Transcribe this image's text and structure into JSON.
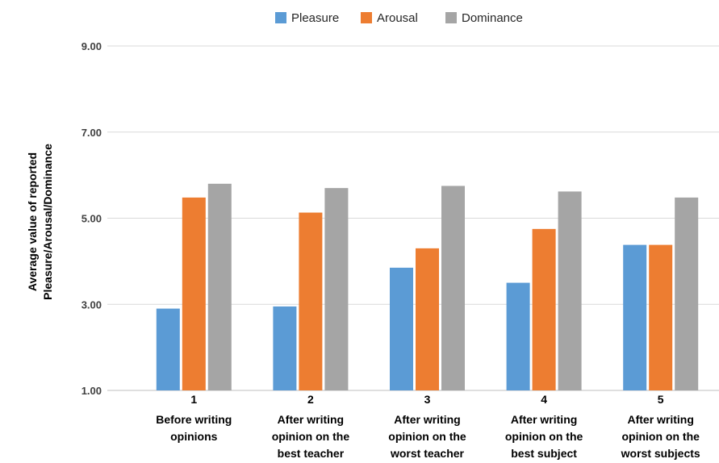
{
  "chart_data": {
    "type": "bar",
    "ylabel": [
      "Average value of reported",
      "Pleasure/Arousal/Dominance"
    ],
    "ylim": [
      1,
      9
    ],
    "yticks": [
      "1.00",
      "3.00",
      "5.00",
      "7.00",
      "9.00"
    ],
    "grid": true,
    "legend_position": "top",
    "categories": [
      {
        "num": "1",
        "lines": [
          "Before writing",
          "opinions"
        ]
      },
      {
        "num": "2",
        "lines": [
          "After writing",
          "opinion on the",
          "best teacher"
        ]
      },
      {
        "num": "3",
        "lines": [
          "After writing",
          "opinion on the",
          "worst teacher"
        ]
      },
      {
        "num": "4",
        "lines": [
          "After writing",
          "opinion on the",
          "best subject"
        ]
      },
      {
        "num": "5",
        "lines": [
          "After writing",
          "opinion on the",
          "worst subjects"
        ]
      }
    ],
    "series": [
      {
        "name": "Pleasure",
        "color": "#5b9bd5",
        "values": [
          2.9,
          2.95,
          3.85,
          3.5,
          4.38
        ]
      },
      {
        "name": "Arousal",
        "color": "#ed7d31",
        "values": [
          5.48,
          5.13,
          4.3,
          4.75,
          4.38
        ]
      },
      {
        "name": "Dominance",
        "color": "#a5a5a5",
        "values": [
          5.8,
          5.7,
          5.75,
          5.62,
          5.48
        ]
      }
    ]
  }
}
